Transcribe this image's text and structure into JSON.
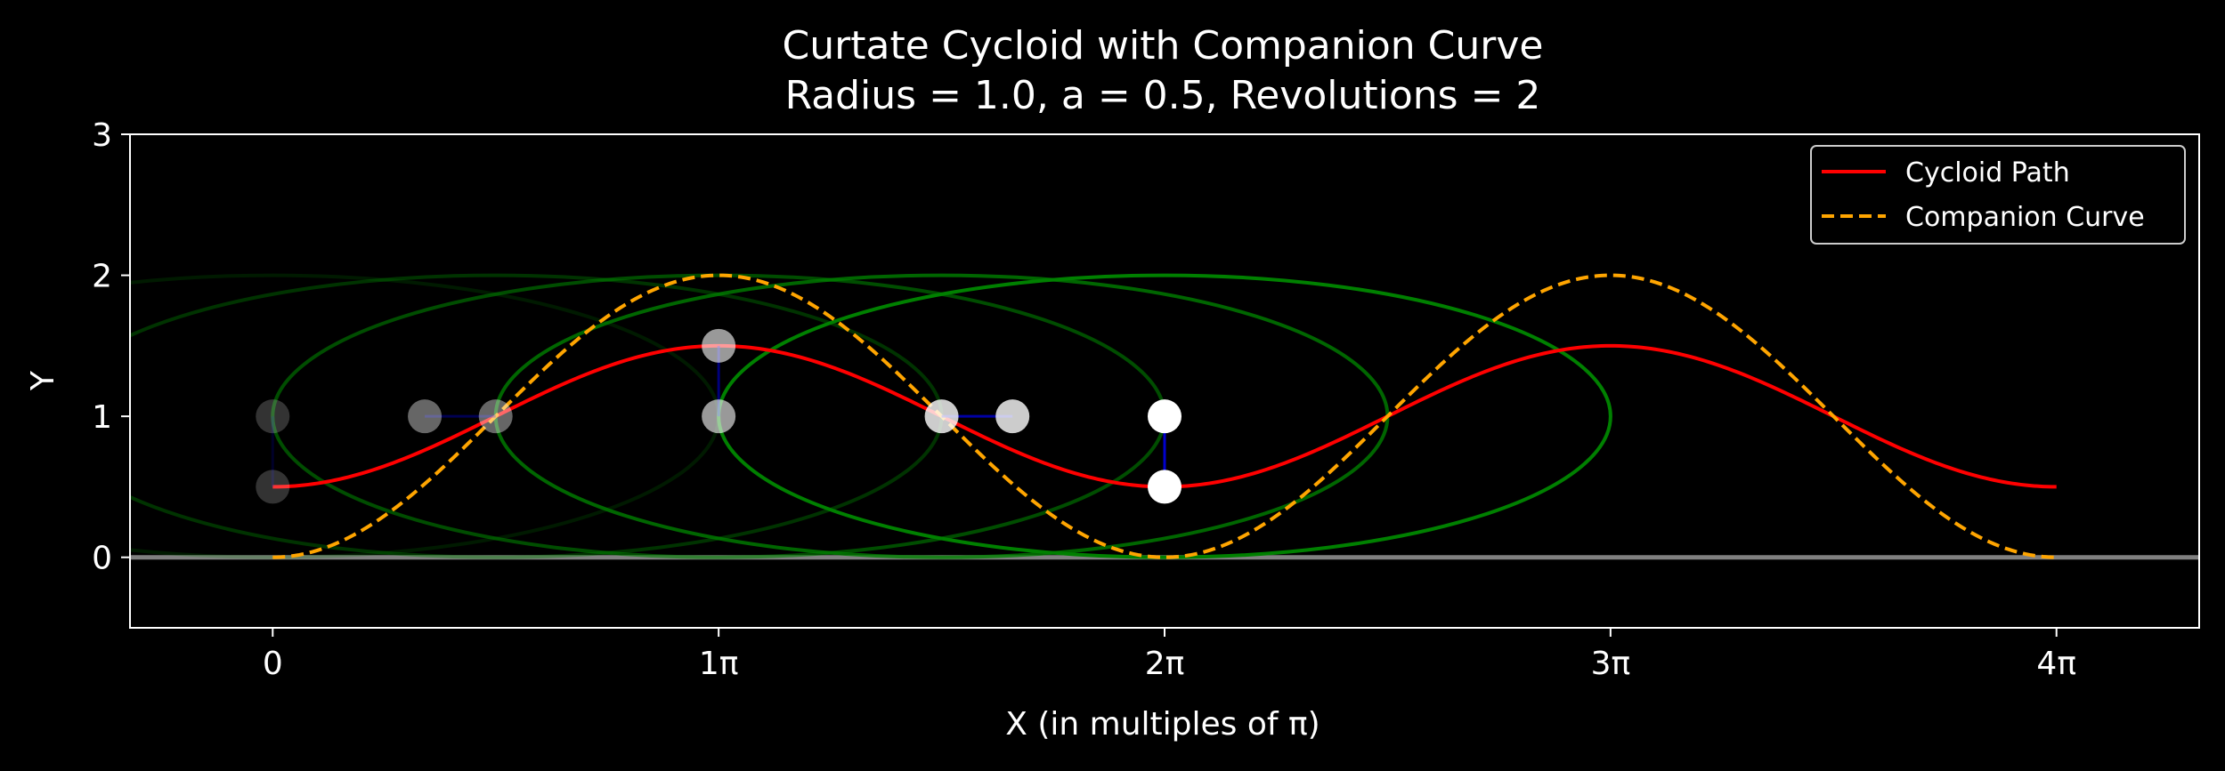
{
  "chart_data": {
    "type": "line",
    "title": "Curtate Cycloid with Companion Curve",
    "subtitle": "Radius = 1.0, a = 0.5, Revolutions = 2",
    "xlabel": "X (in multiples of π)",
    "ylabel": "Y",
    "xlim": [
      -0.32,
      4.32
    ],
    "ylim": [
      -0.5,
      3.0
    ],
    "xtick_values": [
      0,
      1,
      2,
      3,
      4
    ],
    "xtick_labels": [
      "0",
      "1π",
      "2π",
      "3π",
      "4π"
    ],
    "ytick_values": [
      0,
      1,
      2,
      3
    ],
    "ytick_labels": [
      "0",
      "1",
      "2",
      "3"
    ],
    "grid": false,
    "legend_position": "top-right",
    "parameters": {
      "radius": 1.0,
      "a": 0.5,
      "revolutions": 2
    },
    "series": [
      {
        "name": "Cycloid Path",
        "color": "#ff0000",
        "style": "solid",
        "x": [
          0,
          0.25,
          0.5,
          0.75,
          1.0,
          1.25,
          1.5,
          1.75,
          2.0,
          2.25,
          2.5,
          2.75,
          3.0,
          3.25,
          3.5,
          3.75,
          4.0
        ],
        "y": [
          0.5,
          0.646,
          1.0,
          1.354,
          1.5,
          1.354,
          1.0,
          0.646,
          0.5,
          0.646,
          1.0,
          1.354,
          1.5,
          1.354,
          1.0,
          0.646,
          0.5
        ]
      },
      {
        "name": "Companion Curve",
        "color": "#ffa500",
        "style": "dashed",
        "x": [
          0,
          0.25,
          0.5,
          0.75,
          1.0,
          1.25,
          1.5,
          1.75,
          2.0,
          2.25,
          2.5,
          2.75,
          3.0,
          3.25,
          3.5,
          3.75,
          4.0
        ],
        "y": [
          0,
          0.293,
          1.0,
          1.707,
          2.0,
          1.707,
          1.0,
          0.293,
          0,
          0.293,
          1.0,
          1.707,
          2.0,
          1.707,
          1.0,
          0.293,
          0
        ]
      }
    ],
    "ground_line": {
      "y": 0,
      "color": "#808080"
    },
    "rolling_circle": {
      "radius": 1.0,
      "color": "#008000",
      "spoke_color": "#0000cd",
      "point_color": "#ffffff",
      "frames": [
        {
          "center_x": 0,
          "point_x": 0,
          "point_y": 0.5,
          "opacity": 0.2
        },
        {
          "center_x": 0.5,
          "point_x": 0.341,
          "point_y": 1.0,
          "opacity": 0.4
        },
        {
          "center_x": 1.0,
          "point_x": 1.0,
          "point_y": 1.5,
          "opacity": 0.6
        },
        {
          "center_x": 1.5,
          "point_x": 1.659,
          "point_y": 1.0,
          "opacity": 0.8
        },
        {
          "center_x": 2.0,
          "point_x": 2.0,
          "point_y": 0.5,
          "opacity": 1.0
        }
      ]
    }
  }
}
